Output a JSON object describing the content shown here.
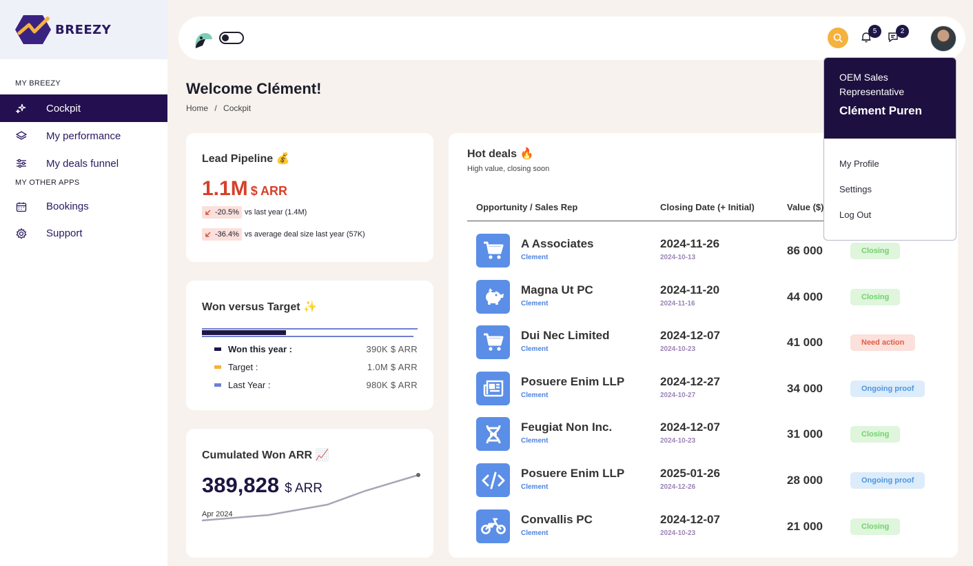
{
  "app": {
    "logo_text": "BREEZY"
  },
  "sidebar": {
    "section_main": "MY BREEZY",
    "items": [
      {
        "label": "Cockpit",
        "icon": "sparkles-icon"
      },
      {
        "label": "My performance",
        "icon": "layers-icon"
      },
      {
        "label": "My deals funnel",
        "icon": "sliders-icon"
      }
    ],
    "section_other": "MY OTHER APPS",
    "other_items": [
      {
        "label": "Bookings",
        "icon": "calendar-icon"
      },
      {
        "label": "Support",
        "icon": "gear-icon"
      }
    ]
  },
  "topbar": {
    "notifications_count": "5",
    "messages_count": "2"
  },
  "header": {
    "welcome": "Welcome Clément!",
    "breadcrumb": [
      "Home",
      "/",
      "Cockpit"
    ]
  },
  "lead_pipeline": {
    "title": "Lead Pipeline 💰",
    "value": "1.1M",
    "unit": "$ ARR",
    "deltas": [
      {
        "pct": "-20.5%",
        "text": "vs last year (1.4M)"
      },
      {
        "pct": "-36.4%",
        "text": "vs average deal size last year (57K)"
      }
    ]
  },
  "won_target": {
    "title": "Won versus Target ✨",
    "won_fraction": 0.39,
    "last_year_fraction": 0.98,
    "legend": [
      {
        "label": "Won this year :",
        "value": "390K $ ARR",
        "color": "#1d1747"
      },
      {
        "label": "Target :",
        "value": "1.0M $ ARR",
        "color": "#f5b23d"
      },
      {
        "label": "Last Year :",
        "value": "980K $ ARR",
        "color": "#6f7fd4"
      }
    ]
  },
  "cumulated": {
    "title": "Cumulated Won ARR 📈",
    "value": "389,828",
    "unit": "$ ARR",
    "start_label": "Apr 2024"
  },
  "hot_deals": {
    "title": "Hot deals 🔥",
    "subtitle": "High value, closing soon",
    "columns": [
      "Opportunity / Sales Rep",
      "Closing Date (+ Initial)",
      "Value ($)"
    ],
    "rows": [
      {
        "name": "A Associates",
        "rep": "Clement",
        "date": "2024-11-26",
        "initial": "2024-10-13",
        "value": "86 000",
        "status": "Closing",
        "status_type": "closing",
        "icon": "cart-icon"
      },
      {
        "name": "Magna Ut PC",
        "rep": "Clement",
        "date": "2024-11-20",
        "initial": "2024-11-16",
        "value": "44 000",
        "status": "Closing",
        "status_type": "closing",
        "icon": "piggy-bank-icon"
      },
      {
        "name": "Dui Nec Limited",
        "rep": "Clement",
        "date": "2024-12-07",
        "initial": "2024-10-23",
        "value": "41 000",
        "status": "Need action",
        "status_type": "action",
        "icon": "cart-icon"
      },
      {
        "name": "Posuere Enim LLP",
        "rep": "Clement",
        "date": "2024-12-27",
        "initial": "2024-10-27",
        "value": "34 000",
        "status": "Ongoing proof",
        "status_type": "proof",
        "icon": "newspaper-icon"
      },
      {
        "name": "Feugiat Non Inc.",
        "rep": "Clement",
        "date": "2024-12-07",
        "initial": "2024-10-23",
        "value": "31 000",
        "status": "Closing",
        "status_type": "closing",
        "icon": "dna-icon"
      },
      {
        "name": "Posuere Enim LLP",
        "rep": "Clement",
        "date": "2025-01-26",
        "initial": "2024-12-26",
        "value": "28 000",
        "status": "Ongoing proof",
        "status_type": "proof",
        "icon": "code-icon"
      },
      {
        "name": "Convallis PC",
        "rep": "Clement",
        "date": "2024-12-07",
        "initial": "2024-10-23",
        "value": "21 000",
        "status": "Closing",
        "status_type": "closing",
        "icon": "motorcycle-icon"
      }
    ]
  },
  "user_menu": {
    "role": "OEM Sales Representative",
    "name": "Clément Puren",
    "items": [
      "My Profile",
      "Settings",
      "Log Out"
    ]
  },
  "colors": {
    "brand_dark": "#241050",
    "accent_red": "#d6412a",
    "deal_icon_bg": "#5b8ee6",
    "search_bg": "#f5b23d"
  }
}
